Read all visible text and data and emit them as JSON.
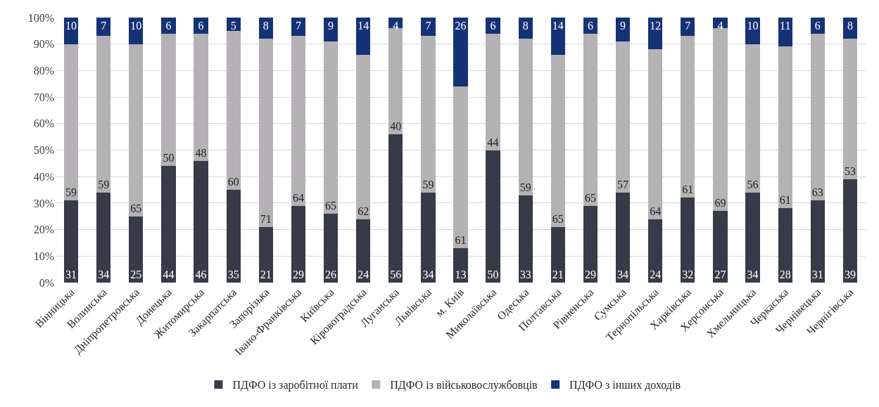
{
  "chart_data": {
    "type": "bar",
    "stacked": true,
    "categories": [
      "Вінницька",
      "Волинська",
      "Дніпропетровська",
      "Донецька",
      "Житомирська",
      "Закарпатська",
      "Запорізька",
      "Івано-Франківська",
      "Київська",
      "Кіровоградська",
      "Луганська",
      "Львівська",
      "м. Київ",
      "Миколаївська",
      "Одеська",
      "Полтавська",
      "Рівненська",
      "Сумська",
      "Тернопільська",
      "Харківська",
      "Херсонська",
      "Хмельницька",
      "Черкаська",
      "Чернівецька",
      "Чернігівська"
    ],
    "series": [
      {
        "name": "ПДФО із заробітної плати",
        "color": "#363b47",
        "values": [
          31,
          34,
          25,
          44,
          46,
          35,
          21,
          29,
          26,
          24,
          56,
          34,
          13,
          50,
          33,
          21,
          29,
          34,
          24,
          32,
          27,
          34,
          28,
          31,
          39
        ]
      },
      {
        "name": "ПДФО із військовослужбовців",
        "color": "#b4b2b4",
        "values": [
          59,
          59,
          65,
          50,
          48,
          60,
          71,
          64,
          65,
          62,
          40,
          59,
          61,
          44,
          59,
          65,
          65,
          57,
          64,
          61,
          69,
          56,
          61,
          63,
          53
        ]
      },
      {
        "name": "ПДФО з інших доходів",
        "color": "#163276",
        "values": [
          10,
          7,
          10,
          6,
          6,
          5,
          8,
          7,
          9,
          14,
          4,
          7,
          26,
          6,
          8,
          14,
          6,
          9,
          12,
          7,
          4,
          10,
          11,
          6,
          8
        ]
      }
    ],
    "ylim": [
      0,
      100
    ],
    "yticks": [
      {
        "value": 0,
        "label": "0%"
      },
      {
        "value": 10,
        "label": "10%"
      },
      {
        "value": 20,
        "label": "20%"
      },
      {
        "value": 30,
        "label": "30%"
      },
      {
        "value": 40,
        "label": "40%"
      },
      {
        "value": 50,
        "label": "50%"
      },
      {
        "value": 60,
        "label": "60%"
      },
      {
        "value": 70,
        "label": "70%"
      },
      {
        "value": 80,
        "label": "80%"
      },
      {
        "value": 90,
        "label": "90%"
      },
      {
        "value": 100,
        "label": "100%"
      }
    ],
    "grid": "y",
    "legend": "bottom",
    "data_labels": true
  }
}
